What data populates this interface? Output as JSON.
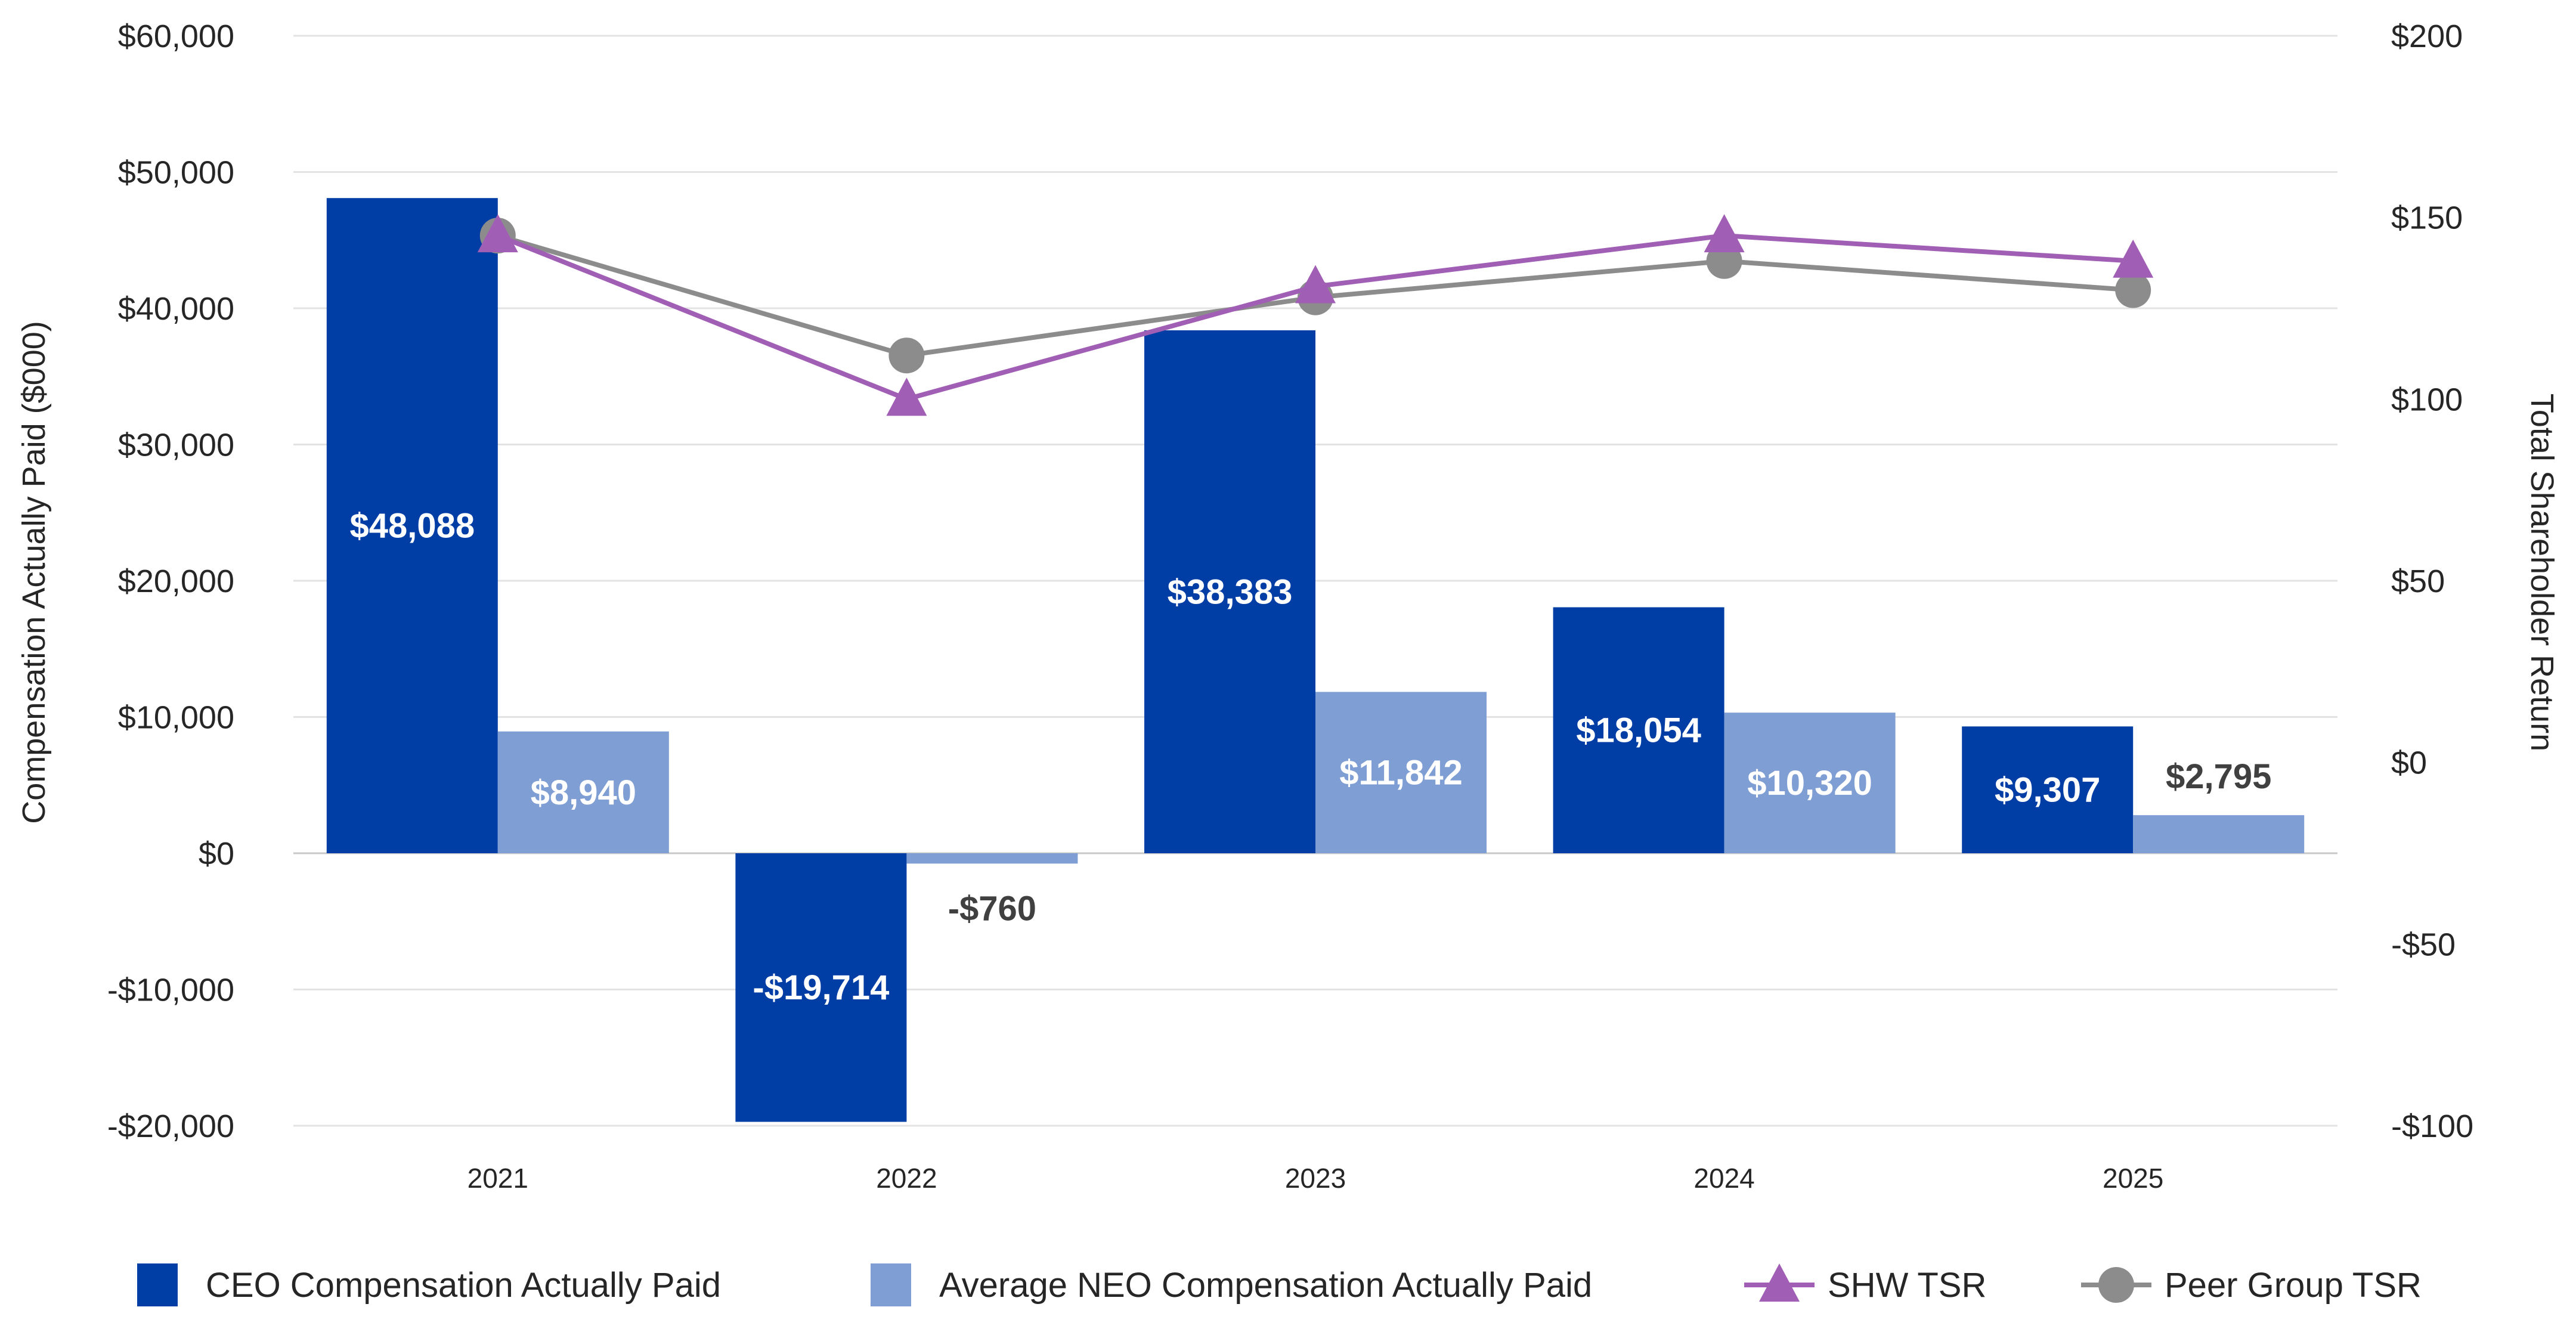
{
  "chart_data": {
    "type": "bar",
    "categories": [
      "2021",
      "2022",
      "2023",
      "2024",
      "2025"
    ],
    "series": [
      {
        "name": "CEO Compensation Actually Paid",
        "kind": "bar",
        "axis": "left",
        "color": "#003DA5",
        "values": [
          48088,
          -19714,
          38383,
          18054,
          9307
        ],
        "labels": [
          "$48,088",
          "-$19,714",
          "$38,383",
          "$18,054",
          "$9,307"
        ]
      },
      {
        "name": "Average NEO Compensation Actually Paid",
        "kind": "bar",
        "axis": "left",
        "color": "#7F9ED4",
        "values": [
          8940,
          -760,
          11842,
          10320,
          2795
        ],
        "labels": [
          "$8,940",
          "-$760",
          "$11,842",
          "$10,320",
          "$2,795"
        ]
      },
      {
        "name": "SHW TSR",
        "kind": "line",
        "marker": "triangle",
        "axis": "right",
        "color": "#A05EB5",
        "values": [
          145,
          100,
          131,
          145,
          138
        ]
      },
      {
        "name": "Peer Group TSR",
        "kind": "line",
        "marker": "circle",
        "axis": "right",
        "color": "#8C8C8C",
        "values": [
          145,
          112,
          128,
          138,
          130
        ]
      }
    ],
    "ylabel": "Compensation Actually Paid ($000)",
    "y2label": "Total Shareholder Return",
    "ylim": [
      -20000,
      60000
    ],
    "y2lim": [
      -100,
      200
    ],
    "yticks": [
      60000,
      50000,
      40000,
      30000,
      20000,
      10000,
      0,
      -10000,
      -20000
    ],
    "ytick_labels": [
      "$60,000",
      "$50,000",
      "$40,000",
      "$30,000",
      "$20,000",
      "$10,000",
      "$0",
      "-$10,000",
      "-$20,000"
    ],
    "y2ticks": [
      200,
      150,
      100,
      50,
      0,
      -50,
      -100
    ],
    "y2tick_labels": [
      "$200",
      "$150",
      "$100",
      "$50",
      "$0",
      "-$50",
      "-$100"
    ],
    "grid": true,
    "legend": "bottom"
  }
}
